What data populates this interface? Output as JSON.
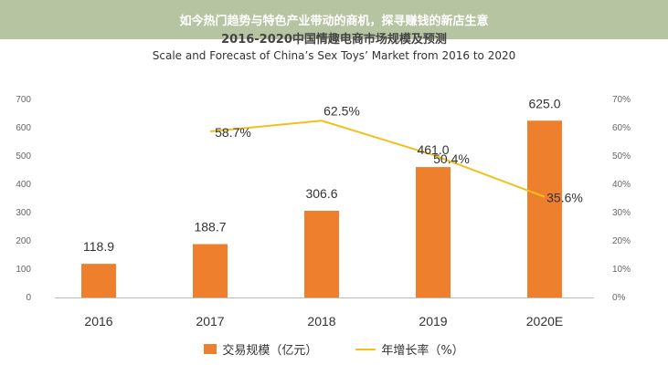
{
  "banner": {
    "text": "如今热门趋势与特色产业带动的商机，探寻赚钱的新店生意"
  },
  "colors": {
    "banner_bg": "#b7c4a2",
    "bar": "#ee7f2d",
    "line": "#f2c01e",
    "text": "#333333",
    "axis": "#999999"
  },
  "chart_data": {
    "type": "bar",
    "title": "2016-2020中国情趣电商市场规模及预测",
    "subtitle": "Scale and Forecast of China’s Sex Toys’ Market from 2016 to 2020",
    "categories": [
      "2016",
      "2017",
      "2018",
      "2019",
      "2020E"
    ],
    "series": [
      {
        "name": "交易规模（亿元）",
        "kind": "bar",
        "axis": "left",
        "values": [
          118.9,
          188.7,
          306.6,
          461.0,
          625.0
        ],
        "labels": [
          "118.9",
          "188.7",
          "306.6",
          "461.0",
          "625.0"
        ]
      },
      {
        "name": "年增长率（%）",
        "kind": "line",
        "axis": "right",
        "values": [
          null,
          58.7,
          62.5,
          50.4,
          35.6
        ],
        "labels": [
          "",
          "58.7%",
          "62.5%",
          "50.4%",
          "35.6%"
        ]
      }
    ],
    "y_left": {
      "min": 0,
      "max": 700,
      "ticks": [
        "0",
        "100",
        "200",
        "300",
        "400",
        "500",
        "600",
        "700"
      ]
    },
    "y_right": {
      "min": 0,
      "max": 70,
      "ticks": [
        "0%",
        "10%",
        "20%",
        "30%",
        "40%",
        "50%",
        "60%",
        "70%"
      ]
    },
    "grid": false,
    "legend": "bottom"
  }
}
